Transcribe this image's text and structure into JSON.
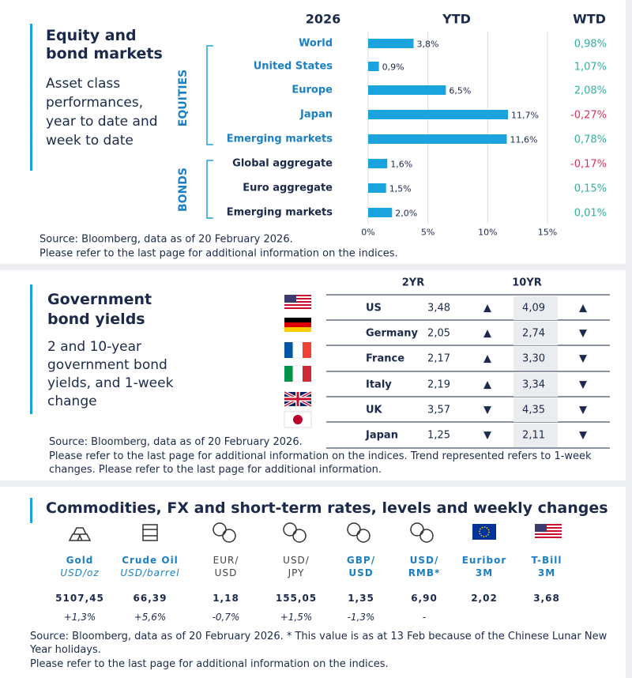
{
  "chart_data": {
    "type": "hbar",
    "title": "Equity and bond markets",
    "subtitle": "Asset class performances, year to date and week to date",
    "year": "2026",
    "x_label": "YTD",
    "wtd_header": "WTD",
    "group_labels": [
      "EQUITIES",
      "BONDS"
    ],
    "categories": [
      "World",
      "United States",
      "Europe",
      "Japan",
      "Emerging  markets",
      "Global aggregate",
      "Euro aggregate",
      "Emerging  markets"
    ],
    "values": [
      3.8,
      0.9,
      6.5,
      11.7,
      11.6,
      1.6,
      1.5,
      2.0
    ],
    "value_labels": [
      "3,8%",
      "0,9%",
      "6,5%",
      "11,7%",
      "11,6%",
      "1,6%",
      "1,5%",
      "2,0%"
    ],
    "wtd": [
      "0,98%",
      "1,07%",
      "2,08%",
      "-0,27%",
      "0,78%",
      "-0,17%",
      "0,15%",
      "0,01%"
    ],
    "color": "#1aa3dc",
    "xlim": [
      0,
      15
    ],
    "xticks": [
      {
        "value": 0,
        "label": "0%"
      },
      {
        "value": 5,
        "label": "5%"
      },
      {
        "value": 10,
        "label": "10%"
      },
      {
        "value": 15,
        "label": "15%"
      }
    ],
    "grid": true,
    "source": [
      "Source: Bloomberg, data as of 20 February 2026.",
      "Please refer to the last page for additional information on the indices."
    ]
  },
  "bonds": {
    "title": "Government bond yields",
    "subtitle": "2 and 10-year government bond yields, and 1-week change",
    "headers": [
      "2YR",
      "10YR"
    ],
    "rows": [
      [
        "US",
        "3,48",
        "▲",
        "4,09",
        "▲"
      ],
      [
        "Germany",
        "2,05",
        "▲",
        "2,74",
        "▼"
      ],
      [
        "France",
        "2,17",
        "▲",
        "3,30",
        "▼"
      ],
      [
        "Italy",
        "2,19",
        "▲",
        "3,34",
        "▼"
      ],
      [
        "UK",
        "3,57",
        "▼",
        "4,35",
        "▼"
      ],
      [
        "Japan",
        "1,25",
        "▼",
        "2,11",
        "▼"
      ]
    ],
    "source": [
      "Source: Bloomberg, data as of 20 February 2026.",
      "Please refer to the last page for additional information on the indices. Trend represented refers to 1-week changes. Please refer to the last page for additional information."
    ]
  },
  "commodities": {
    "title": "Commodities, FX and short-term rates, levels and weekly changes",
    "items": [
      {
        "name": "Gold",
        "unit": "USD/oz",
        "level": "5107,45",
        "change": "+1,3%"
      },
      {
        "name": "Crude Oil",
        "unit": "USD/barrel",
        "level": "66,39",
        "change": "+5,6%"
      },
      {
        "name": "EUR/",
        "unit": "USD",
        "level": "1,18",
        "change": "-0,7%"
      },
      {
        "name": "USD/",
        "unit": "JPY",
        "level": "155,05",
        "change": "+1,5%"
      },
      {
        "name": "GBP/",
        "unit": "USD",
        "level": "1,35",
        "change": "-1,3%"
      },
      {
        "name": "USD/",
        "unit": "RMB*",
        "level": "6,90",
        "change": "-"
      },
      {
        "name": "Euribor",
        "unit": "3M",
        "level": "2,02"
      },
      {
        "name": "T-Bill",
        "unit": "3M",
        "level": "3,68"
      }
    ],
    "source": [
      "Source: Bloomberg, data as of 20 February 2026. * This value is as at 13 Feb because of the Chinese Lunar New Year holidays.",
      "Please refer to the last page for additional information on the indices."
    ]
  }
}
